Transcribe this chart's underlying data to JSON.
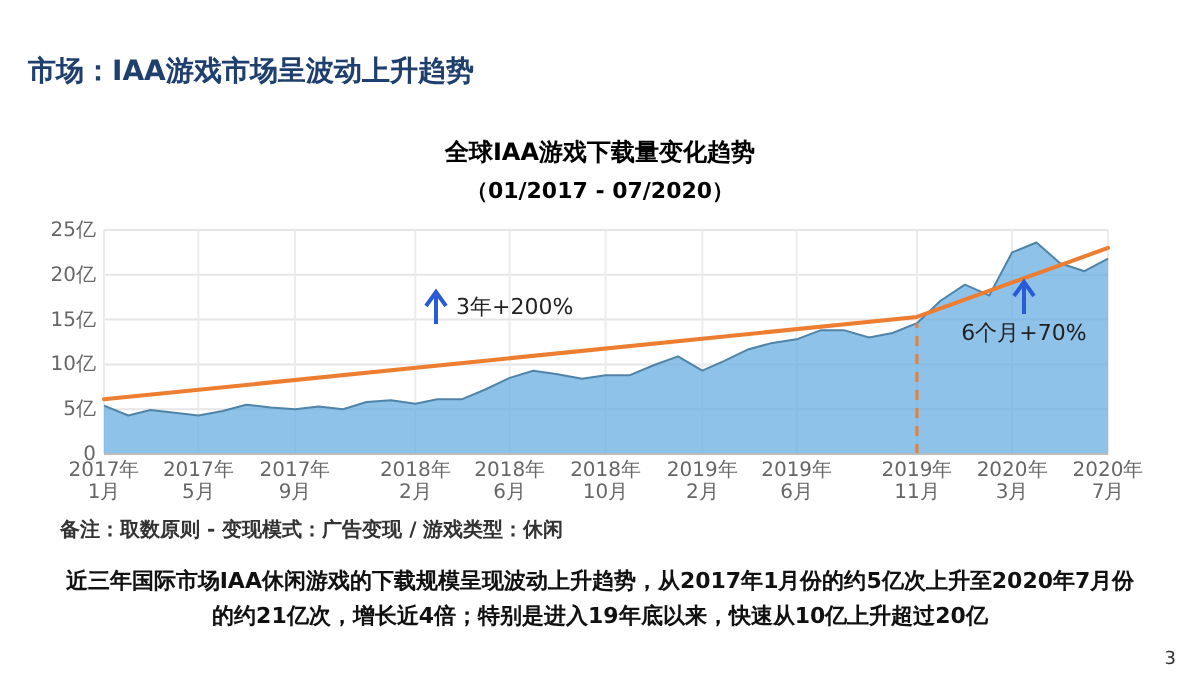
{
  "chart_data": {
    "type": "area",
    "title": "全球IAA游戏下载量变化趋势",
    "subtitle": "（01/2017 - 07/2020）",
    "x": [
      "2017-01",
      "2017-02",
      "2017-03",
      "2017-04",
      "2017-05",
      "2017-06",
      "2017-07",
      "2017-08",
      "2017-09",
      "2017-10",
      "2017-11",
      "2017-12",
      "2018-01",
      "2018-02",
      "2018-03",
      "2018-04",
      "2018-05",
      "2018-06",
      "2018-07",
      "2018-08",
      "2018-09",
      "2018-10",
      "2018-11",
      "2018-12",
      "2019-01",
      "2019-02",
      "2019-03",
      "2019-04",
      "2019-05",
      "2019-06",
      "2019-07",
      "2019-08",
      "2019-09",
      "2019-10",
      "2019-11",
      "2019-12",
      "2020-01",
      "2020-02",
      "2020-03",
      "2020-04",
      "2020-05",
      "2020-06",
      "2020-07"
    ],
    "series": [
      {
        "color": "#6aaee0",
        "values": [
          5.4,
          4.3,
          4.9,
          4.6,
          4.3,
          4.8,
          5.5,
          5.2,
          5.0,
          5.3,
          5.0,
          5.8,
          6.0,
          5.6,
          6.1,
          6.1,
          7.2,
          8.5,
          9.3,
          8.9,
          8.4,
          8.8,
          8.8,
          9.9,
          10.9,
          9.3,
          10.4,
          11.7,
          12.4,
          12.8,
          13.8,
          13.8,
          13.0,
          13.5,
          14.6,
          17.1,
          18.9,
          17.7,
          22.5,
          23.6,
          21.3,
          20.4,
          21.8
        ]
      },
      {
        "type": "line",
        "color": "#ed7d31",
        "x": [
          "2017-01",
          "2019-11",
          "2020-07"
        ],
        "values": [
          6.1,
          15.3,
          23.0
        ]
      }
    ],
    "xlim": [
      "2017-01",
      "2020-07"
    ],
    "xticks": [
      {
        "value": "2017-01",
        "label": "2017年1月"
      },
      {
        "value": "2017-05",
        "label": "2017年5月"
      },
      {
        "value": "2017-09",
        "label": "2017年9月"
      },
      {
        "value": "2018-02",
        "label": "2018年2月"
      },
      {
        "value": "2018-06",
        "label": "2018年6月"
      },
      {
        "value": "2018-10",
        "label": "2018年10月"
      },
      {
        "value": "2019-02",
        "label": "2019年2月"
      },
      {
        "value": "2019-06",
        "label": "2019年6月"
      },
      {
        "value": "2019-11",
        "label": "2019年11月"
      },
      {
        "value": "2020-03",
        "label": "2020年3月"
      },
      {
        "value": "2020-07",
        "label": "2020年7月"
      }
    ],
    "ylim": [
      0,
      25
    ],
    "yticks": [
      {
        "value": 0,
        "label": "0"
      },
      {
        "value": 5,
        "label": "5亿"
      },
      {
        "value": 10,
        "label": "10亿"
      },
      {
        "value": 15,
        "label": "15亿"
      },
      {
        "value": 20,
        "label": "20亿"
      },
      {
        "value": 25,
        "label": "25亿"
      }
    ],
    "grid": true,
    "ref_lines": [
      {
        "axis": "x",
        "value": "2019-11",
        "color": "#ed7d31",
        "line_style": "dashed"
      }
    ],
    "annotations": [
      "市场：IAA游戏市场呈波动上升趋势",
      "备注：取数原则 - 变现模式：广告变现 / 游戏类型：休闲",
      "近三年国际市场IAA休闲游戏的下载规模呈现波动上升趋势，从2017年1月份的约5亿次上升至2020年7月份的约21亿次，增长近4倍；特别是进入19年底以来，快速从10亿上升超过20亿",
      "3",
      "3年+200%",
      "6个月+70%"
    ]
  }
}
